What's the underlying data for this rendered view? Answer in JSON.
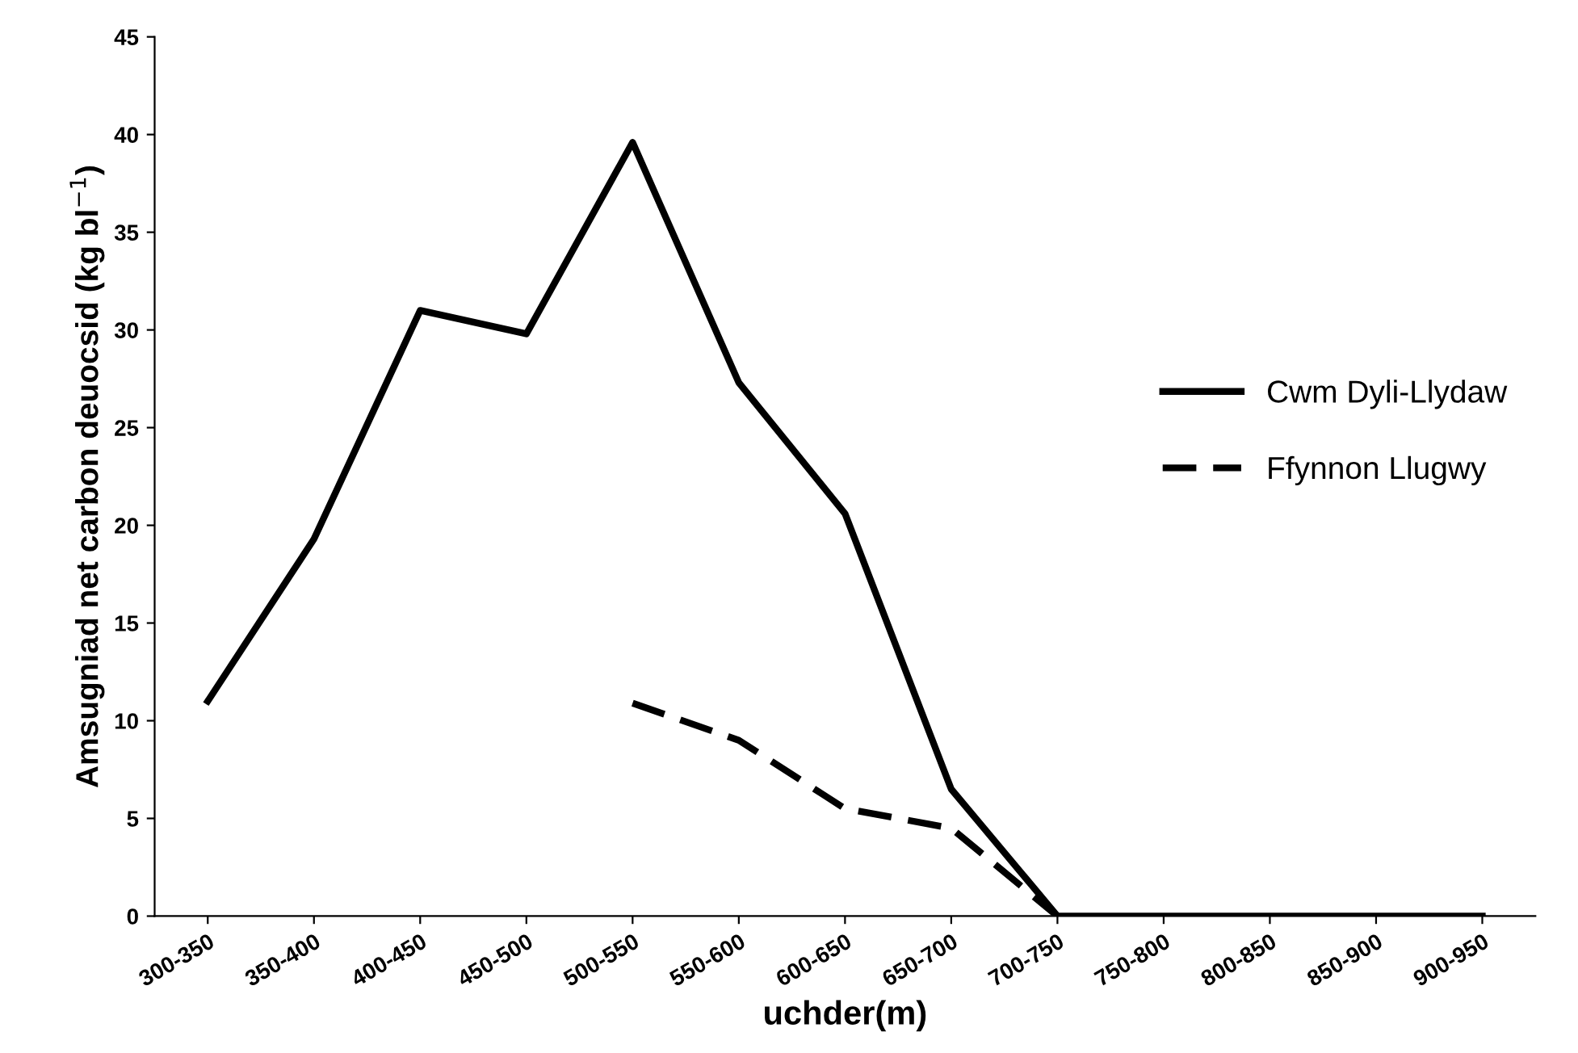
{
  "chart_data": {
    "type": "line",
    "xlabel": "uchder(m)",
    "ylabel": "Amsugniad net carbon deuocsid (kg bl$^{−1}$)",
    "categories": [
      "300-350",
      "350-400",
      "400-450",
      "450-500",
      "500-550",
      "550-600",
      "600-650",
      "650-700",
      "700-750",
      "750-800",
      "800-850",
      "850-900",
      "900-950"
    ],
    "series": [
      {
        "name": "Cwm Dyli-Llydaw",
        "color": "#000000",
        "line_style": "solid",
        "values": [
          11,
          19.3,
          31,
          29.8,
          39.6,
          27.3,
          20.6,
          6.5,
          0,
          0,
          0,
          0,
          0
        ]
      },
      {
        "name": "Ffynnon Llugwy",
        "color": "#000000",
        "line_style": "dashed",
        "values": [
          null,
          null,
          null,
          null,
          10.9,
          9,
          5.5,
          4.5,
          0,
          null,
          null,
          null,
          null
        ]
      }
    ],
    "ylim": [
      0,
      45
    ],
    "yticks": [
      0,
      5,
      10,
      15,
      20,
      25,
      30,
      35,
      40,
      45
    ],
    "grid": false,
    "legend": "right",
    "marker": "none"
  }
}
